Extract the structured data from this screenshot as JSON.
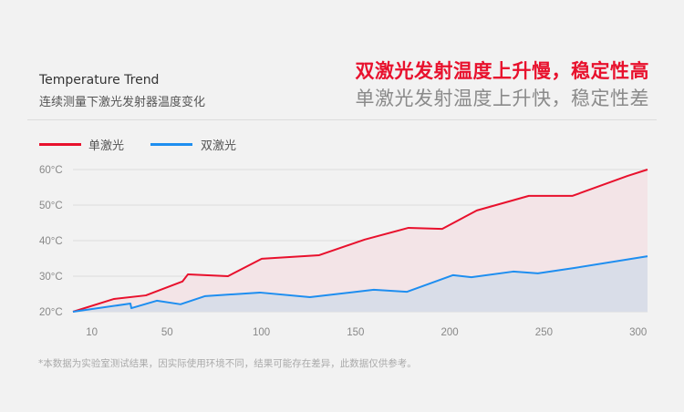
{
  "header": {
    "title": "Temperature Trend",
    "subtitle": "连续测量下激光发射器温度变化",
    "headline_1": "双激光发射温度上升慢，稳定性高",
    "headline_2": "单激光发射温度上升快，稳定性差"
  },
  "footnote": "*本数据为实验室测试结果，因实际使用环境不同，结果可能存在差异，此数据仅供参考。",
  "colors": {
    "single": "#e8112d",
    "dual": "#1e8ef0",
    "single_fill": "#f3e4e7",
    "dual_fill": "#d9dde8",
    "background": "#f2f2f2"
  },
  "chart_data": {
    "type": "area",
    "xlim": [
      0,
      305
    ],
    "ylim": [
      20,
      60
    ],
    "x_ticks": [
      10,
      50,
      100,
      150,
      200,
      250,
      300
    ],
    "y_ticks": [
      20,
      30,
      40,
      50,
      60
    ],
    "y_tick_labels": [
      "20°C",
      "30°C",
      "40°C",
      "50°C",
      "60°C"
    ],
    "grid": true,
    "legend_position": "top-left",
    "series": [
      {
        "name": "单激光",
        "color": "#e8112d",
        "x": [
          0,
          21.8,
          38.7,
          58.1,
          61,
          82.3,
          100.2,
          130.7,
          154.9,
          178.1,
          196,
          214.4,
          242,
          265.2,
          294.3,
          305
        ],
        "y": [
          20,
          23.6,
          24.6,
          28.5,
          30.5,
          30,
          34.9,
          35.9,
          40.3,
          43.6,
          43.3,
          48.5,
          52.6,
          52.6,
          58.2,
          60
        ]
      },
      {
        "name": "双激光",
        "color": "#1e8ef0",
        "x": [
          0,
          30.5,
          31,
          44.5,
          57.1,
          70.2,
          99.2,
          125.8,
          159.7,
          177.2,
          201.8,
          211.5,
          233.7,
          246.8,
          266.1,
          305
        ],
        "y": [
          20,
          22.3,
          21,
          23.1,
          22.1,
          24.4,
          25.4,
          24.1,
          26.2,
          25.6,
          30.3,
          29.7,
          31.3,
          30.8,
          32.3,
          35.6
        ]
      }
    ]
  }
}
